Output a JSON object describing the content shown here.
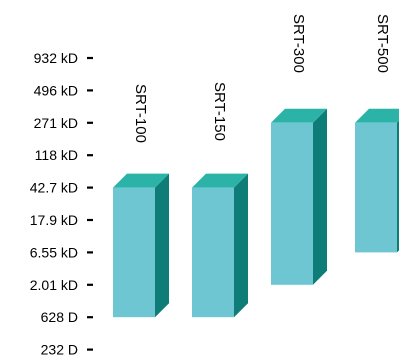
{
  "chart_data": {
    "type": "bar",
    "title": "",
    "xlabel": "",
    "ylabel": "",
    "y_scale": "log",
    "grid": false,
    "legend": "none",
    "y_ticks": [
      "932 kD",
      "496 kD",
      "271 kD",
      "118 kD",
      "42.7 kD",
      "17.9 kD",
      "6.55 kD",
      "2.01 kD",
      "628 D",
      "232 D"
    ],
    "categories": [
      "SRT-100",
      "SRT-150",
      "SRT-300",
      "SRT-500"
    ],
    "ranges": [
      {
        "category": "SRT-100",
        "top": "42.7 kD",
        "bottom": "628 D"
      },
      {
        "category": "SRT-150",
        "top": "42.7 kD",
        "bottom": "628 D"
      },
      {
        "category": "SRT-300",
        "top": "271 kD",
        "bottom": "2.01 kD"
      },
      {
        "category": "SRT-500",
        "top": "271 kD",
        "bottom": "6.55 kD"
      }
    ],
    "colors": {
      "front": "#6ec6d3",
      "top": "#2bb3a8",
      "side": "#0e7d78",
      "tick": "#000000"
    }
  }
}
